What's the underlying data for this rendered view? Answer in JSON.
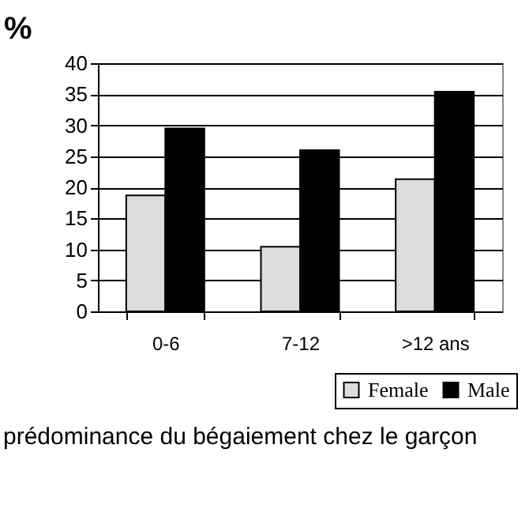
{
  "chart_data": {
    "type": "bar",
    "ylabel": "%",
    "categories": [
      "0-6",
      "7-12",
      ">12 ans"
    ],
    "series": [
      {
        "name": "Female",
        "color": "#dcdcdc",
        "values": [
          18.7,
          10.4,
          21.3
        ]
      },
      {
        "name": "Male",
        "color": "#000000",
        "values": [
          29.5,
          26.0,
          35.4
        ]
      }
    ],
    "ylim": [
      0,
      40
    ],
    "yticks": [
      0,
      5,
      10,
      15,
      20,
      25,
      30,
      35,
      40
    ],
    "grid": "y",
    "legend": "bottom right",
    "annotations": [
      "prédominance du bégaiement chez le garçon"
    ]
  }
}
